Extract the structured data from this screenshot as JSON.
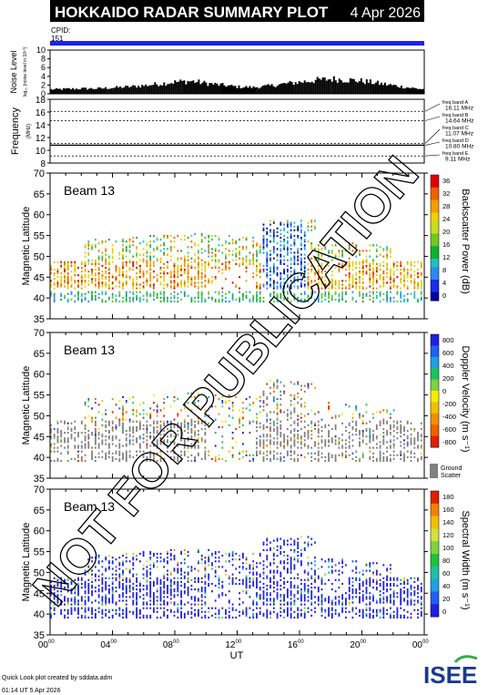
{
  "header": {
    "title": "HOKKAIDO RADAR SUMMARY PLOT",
    "date": "4 Apr 2026",
    "cpid_label": "CPID:",
    "cpid_value": "151"
  },
  "colors": {
    "title_bg": "#000000",
    "cpid_bar": "#2020f0",
    "ground_scatter": "#808080"
  },
  "footer": {
    "credit": "Quick Look plot created by sddata.adm",
    "timestamp": "01:14 UT 5 Apr 2026",
    "logo_text": "ISEE"
  },
  "watermark": "NOT FOR PUBLICATION",
  "chart_data": [
    {
      "type": "area",
      "ylabel": "Noise Level",
      "ylabel_sub": "log₁₀ (noise level in 10¹⁰)",
      "ylim": [
        0,
        10
      ],
      "yticks": [
        "0",
        "2",
        "4",
        "6",
        "8",
        "10"
      ],
      "x": [
        0,
        1,
        2,
        3,
        4,
        5,
        6,
        7,
        8,
        9,
        10,
        11,
        12,
        13,
        14,
        15,
        16,
        17,
        18,
        19,
        20,
        21,
        22,
        23,
        24
      ],
      "values": [
        1.0,
        1.1,
        1.2,
        1.2,
        1.4,
        1.6,
        1.9,
        2.3,
        2.7,
        2.9,
        2.4,
        2.0,
        1.6,
        1.5,
        1.8,
        2.3,
        2.7,
        3.1,
        3.4,
        3.2,
        2.9,
        2.4,
        1.9,
        1.4,
        1.0
      ]
    },
    {
      "type": "line",
      "ylabel": "Frequency",
      "yunit": "(MHz)",
      "ylim": [
        8,
        18
      ],
      "yticks": [
        "8",
        "10",
        "12",
        "14",
        "16",
        "18"
      ],
      "freq_bands": [
        {
          "label": "freq band A",
          "value": "16.11 MHz",
          "mhz": 16.11
        },
        {
          "label": "freq band B",
          "value": "14.64 MHz",
          "mhz": 14.64
        },
        {
          "label": "freq band C",
          "value": "11.07 MHz",
          "mhz": 11.07
        },
        {
          "label": "freq band D",
          "value": "10.80 MHz",
          "mhz": 10.8
        },
        {
          "label": "freq band E",
          "value": "9.11 MHz",
          "mhz": 9.11
        }
      ],
      "active_freq_mhz": 10.8
    },
    {
      "type": "heatmap",
      "beam_label": "Beam 13",
      "ylabel": "Magnetic Latitude",
      "ylim": [
        35,
        70
      ],
      "yticks": [
        "35",
        "40",
        "45",
        "50",
        "55",
        "60",
        "65",
        "70"
      ],
      "colorbar_label": "Backscatter Power (dB)",
      "colorbar_ticks": [
        "0",
        "4",
        "8",
        "12",
        "16",
        "20",
        "24",
        "28",
        "32",
        "36"
      ],
      "colorbar_range": [
        0,
        36
      ]
    },
    {
      "type": "heatmap",
      "beam_label": "Beam 13",
      "ylabel": "Magnetic Latitude",
      "ylim": [
        35,
        70
      ],
      "yticks": [
        "35",
        "40",
        "45",
        "50",
        "55",
        "60",
        "65",
        "70"
      ],
      "colorbar_label": "Doppler Velocity (m s⁻¹)",
      "colorbar_ticks": [
        "800",
        "600",
        "400",
        "200",
        "0",
        "-200",
        "-400",
        "-600",
        "-800"
      ],
      "colorbar_range": [
        -800,
        800
      ],
      "ground_scatter_label": "Ground Scatter"
    },
    {
      "type": "heatmap",
      "beam_label": "Beam 13",
      "ylabel": "Magnetic Latitude",
      "ylim": [
        35,
        70
      ],
      "yticks": [
        "35",
        "40",
        "45",
        "50",
        "55",
        "60",
        "65",
        "70"
      ],
      "colorbar_label": "Spectral Width (m s⁻¹)",
      "colorbar_ticks": [
        "0",
        "20",
        "40",
        "60",
        "80",
        "100",
        "120",
        "140",
        "160",
        "180"
      ],
      "colorbar_range": [
        0,
        180
      ]
    }
  ],
  "x_axis": {
    "label": "UT",
    "ticks": [
      {
        "h": "00",
        "m": "00",
        "val": 0
      },
      {
        "h": "04",
        "m": "00",
        "val": 4
      },
      {
        "h": "08",
        "m": "00",
        "val": 8
      },
      {
        "h": "12",
        "m": "00",
        "val": 12
      },
      {
        "h": "16",
        "m": "00",
        "val": 16
      },
      {
        "h": "20",
        "m": "00",
        "val": 20
      },
      {
        "h": "00",
        "m": "00",
        "val": 24
      }
    ]
  }
}
